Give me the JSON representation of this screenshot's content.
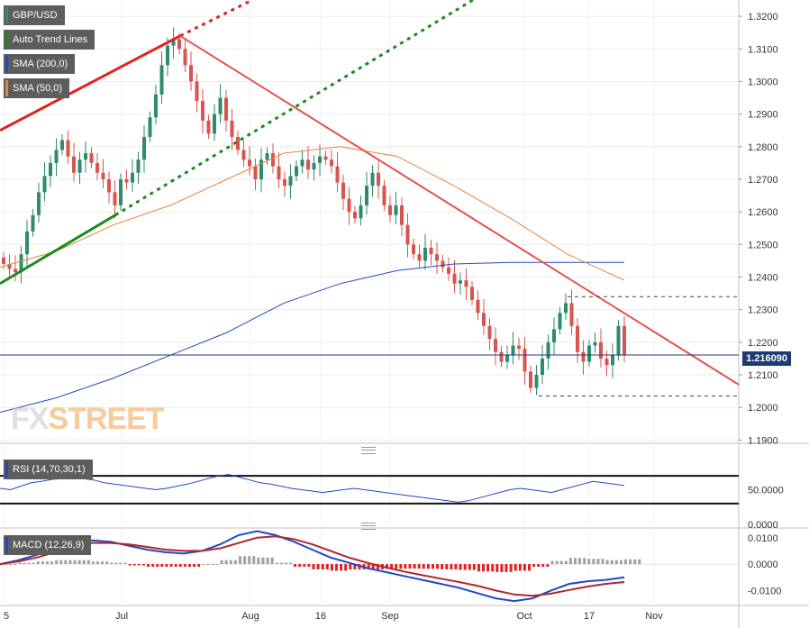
{
  "legend": {
    "symbol": "GBP/USD",
    "trend": "Auto Trend Lines",
    "sma200": "SMA (200,0)",
    "sma50": "SMA (50,0)",
    "rsi": "RSI (14,70,30,1)",
    "macd": "MACD (12,26,9)"
  },
  "watermark": {
    "part1": "FX",
    "part2": "STREET"
  },
  "current_price": "1.216090",
  "colors": {
    "up": "#2e8b6e",
    "down": "#d9534f",
    "sma200": "#1f49c8",
    "sma50": "#e8843a",
    "trend_red": "#e32020",
    "trend_green": "#1e8a1e",
    "downtrend": "#e8504a",
    "macd_line": "#1f49c8",
    "signal_line": "#b3262a",
    "hist_pos": "#a0a0a0",
    "hist_neg": "#e02020"
  },
  "chart_data": [
    {
      "type": "candlestick",
      "title": "GBP/USD",
      "x_tick_labels": [
        "5",
        "Jul",
        "Aug",
        "16",
        "Sep",
        "Oct",
        "17",
        "Nov"
      ],
      "y_tick_labels": [
        "1.3200",
        "1.3100",
        "1.3000",
        "1.2900",
        "1.2800",
        "1.2700",
        "1.2600",
        "1.2500",
        "1.2400",
        "1.2300",
        "1.2200",
        "1.2100",
        "1.2000",
        "1.1900"
      ],
      "ylim": [
        1.189,
        1.325
      ],
      "grid": true,
      "last_price": 1.21609,
      "range_box": {
        "high": 1.234,
        "low": 1.2035
      },
      "closes": [
        1.244,
        1.2425,
        1.2415,
        1.247,
        1.254,
        1.259,
        1.266,
        1.271,
        1.275,
        1.279,
        1.282,
        1.277,
        1.272,
        1.276,
        1.278,
        1.275,
        1.272,
        1.27,
        1.266,
        1.262,
        1.27,
        1.269,
        1.272,
        1.276,
        1.283,
        1.289,
        1.296,
        1.305,
        1.311,
        1.313,
        1.31,
        1.305,
        1.3,
        1.294,
        1.288,
        1.284,
        1.29,
        1.295,
        1.288,
        1.283,
        1.279,
        1.276,
        1.274,
        1.27,
        1.276,
        1.278,
        1.274,
        1.27,
        1.268,
        1.271,
        1.274,
        1.276,
        1.273,
        1.275,
        1.277,
        1.276,
        1.274,
        1.269,
        1.264,
        1.26,
        1.258,
        1.262,
        1.268,
        1.272,
        1.268,
        1.262,
        1.259,
        1.262,
        1.256,
        1.25,
        1.247,
        1.245,
        1.249,
        1.247,
        1.245,
        1.243,
        1.241,
        1.238,
        1.239,
        1.237,
        1.233,
        1.229,
        1.225,
        1.221,
        1.217,
        1.214,
        1.216,
        1.219,
        1.218,
        1.211,
        1.206,
        1.21,
        1.215,
        1.22,
        1.224,
        1.229,
        1.232,
        1.225,
        1.217,
        1.214,
        1.219,
        1.22,
        1.215,
        1.213,
        1.216,
        1.225,
        1.2161
      ],
      "series": [
        {
          "name": "SMA (200,0)",
          "values": [
            1.1985,
            1.203,
            1.209,
            1.216,
            1.223,
            1.232,
            1.238,
            1.242,
            1.244,
            1.2445,
            1.2445,
            1.2445
          ]
        },
        {
          "name": "SMA (50,0)",
          "values": [
            1.243,
            1.248,
            1.256,
            1.262,
            1.27,
            1.278,
            1.28,
            1.277,
            1.268,
            1.258,
            1.247,
            1.239
          ]
        }
      ],
      "trend_lines": [
        {
          "kind": "resistance",
          "from": 1.285,
          "to": 1.314
        },
        {
          "kind": "support",
          "from": 1.238,
          "to": 1.259
        },
        {
          "kind": "downtrend",
          "from": 1.314,
          "to": 1.207
        }
      ]
    },
    {
      "type": "line",
      "title": "RSI (14,70,30,1)",
      "y_tick_labels": [
        "50.0000",
        "0.0000"
      ],
      "levels": [
        70,
        30
      ],
      "values": [
        52,
        50,
        55,
        60,
        62,
        65,
        66,
        68,
        66,
        64,
        60,
        58,
        56,
        54,
        52,
        50,
        52,
        55,
        58,
        62,
        66,
        70,
        72,
        68,
        64,
        60,
        58,
        55,
        52,
        50,
        48,
        46,
        48,
        50,
        52,
        50,
        48,
        46,
        44,
        42,
        40,
        38,
        36,
        34,
        32,
        34,
        38,
        42,
        46,
        50,
        52,
        50,
        48,
        46,
        50,
        54,
        58,
        62,
        60,
        58,
        56
      ]
    },
    {
      "type": "bar",
      "title": "MACD (12,26,9)",
      "y_tick_labels": [
        "0.0100",
        "0.0000",
        "-0.0100"
      ],
      "series": [
        {
          "name": "MACD",
          "values": [
            0.0,
            0.0015,
            0.0035,
            0.006,
            0.008,
            0.009,
            0.0085,
            0.007,
            0.0055,
            0.0045,
            0.004,
            0.005,
            0.0075,
            0.011,
            0.0125,
            0.011,
            0.0085,
            0.0055,
            0.0025,
            0.0005,
            -0.0015,
            -0.003,
            -0.0045,
            -0.006,
            -0.0075,
            -0.009,
            -0.011,
            -0.013,
            -0.014,
            -0.013,
            -0.01,
            -0.0075,
            -0.0065,
            -0.006,
            -0.005
          ]
        },
        {
          "name": "Signal",
          "values": [
            0.0,
            0.001,
            0.0025,
            0.0045,
            0.0065,
            0.008,
            0.008,
            0.0075,
            0.0065,
            0.0055,
            0.005,
            0.005,
            0.006,
            0.008,
            0.01,
            0.0105,
            0.0095,
            0.0075,
            0.005,
            0.0025,
            0.0005,
            -0.0012,
            -0.0028,
            -0.0042,
            -0.0055,
            -0.0068,
            -0.0082,
            -0.01,
            -0.0115,
            -0.012,
            -0.0112,
            -0.0098,
            -0.0085,
            -0.0075,
            -0.0068
          ]
        },
        {
          "name": "Histogram",
          "values": [
            0.0,
            0.0005,
            0.001,
            0.0015,
            0.0015,
            0.001,
            0.0005,
            -0.0005,
            -0.001,
            -0.001,
            -0.001,
            0.0,
            0.0015,
            0.003,
            0.0025,
            0.0005,
            -0.001,
            -0.002,
            -0.0025,
            -0.002,
            -0.002,
            -0.0018,
            -0.0017,
            -0.0018,
            -0.002,
            -0.0022,
            -0.0028,
            -0.003,
            -0.0025,
            -0.001,
            0.0012,
            0.0023,
            0.002,
            0.0015,
            0.0018
          ]
        }
      ]
    }
  ]
}
